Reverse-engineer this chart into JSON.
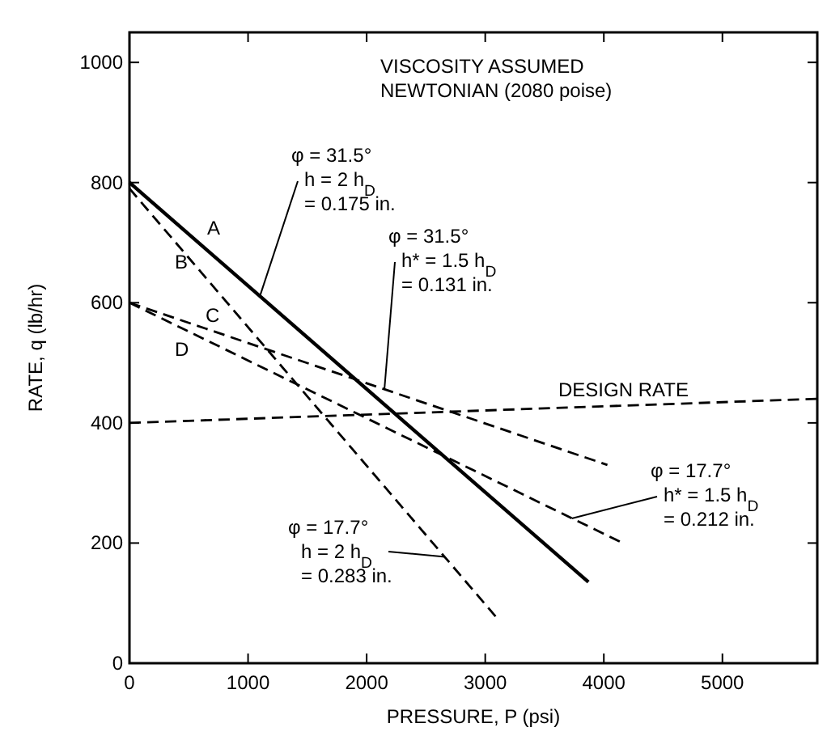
{
  "chart_data": {
    "type": "line",
    "xlabel": "PRESSURE, P (psi)",
    "ylabel": "RATE, q (lb/hr)",
    "xlim": [
      0,
      5800
    ],
    "ylim": [
      0,
      1050
    ],
    "xticks": [
      0,
      1000,
      2000,
      3000,
      4000,
      5000
    ],
    "yticks": [
      0,
      200,
      400,
      600,
      800,
      1000
    ],
    "grid": false,
    "series": [
      {
        "name": "A",
        "color": "#000000",
        "line_style": "solid",
        "x": [
          0,
          3870
        ],
        "values": [
          800,
          135
        ]
      },
      {
        "name": "B",
        "color": "#000000",
        "line_style": "dashed",
        "x": [
          0,
          3100
        ],
        "values": [
          790,
          75
        ]
      },
      {
        "name": "C",
        "color": "#000000",
        "line_style": "dashed",
        "x": [
          0,
          4030
        ],
        "values": [
          600,
          330
        ]
      },
      {
        "name": "D",
        "color": "#000000",
        "line_style": "dashed",
        "x": [
          0,
          4160
        ],
        "values": [
          600,
          200
        ]
      },
      {
        "name": "DESIGN RATE",
        "color": "#000000",
        "line_style": "dashed",
        "x": [
          0,
          5800
        ],
        "values": [
          400,
          440
        ]
      }
    ],
    "annotations": [
      "VISCOSITY ASSUMED\nNEWTONIAN (2080 poise)",
      {
        "text": "φ = 31.5°\nh = 2 h$_{D}$\n= 0.175 in.",
        "x": 1100,
        "y": 611
      },
      {
        "text": "φ = 31.5°\nh* = 1.5 h$_{D}$\n= 0.131 in.",
        "x": 2150,
        "y": 456
      },
      {
        "text": "φ = 17.7°\nh* = 1.5 h$_{D}$\n= 0.212 in.",
        "x": 3730,
        "y": 241
      },
      {
        "text": "φ = 17.7°\nh = 2 h$_{D}$\n= 0.283 in.",
        "x": 2660,
        "y": 177
      }
    ]
  }
}
